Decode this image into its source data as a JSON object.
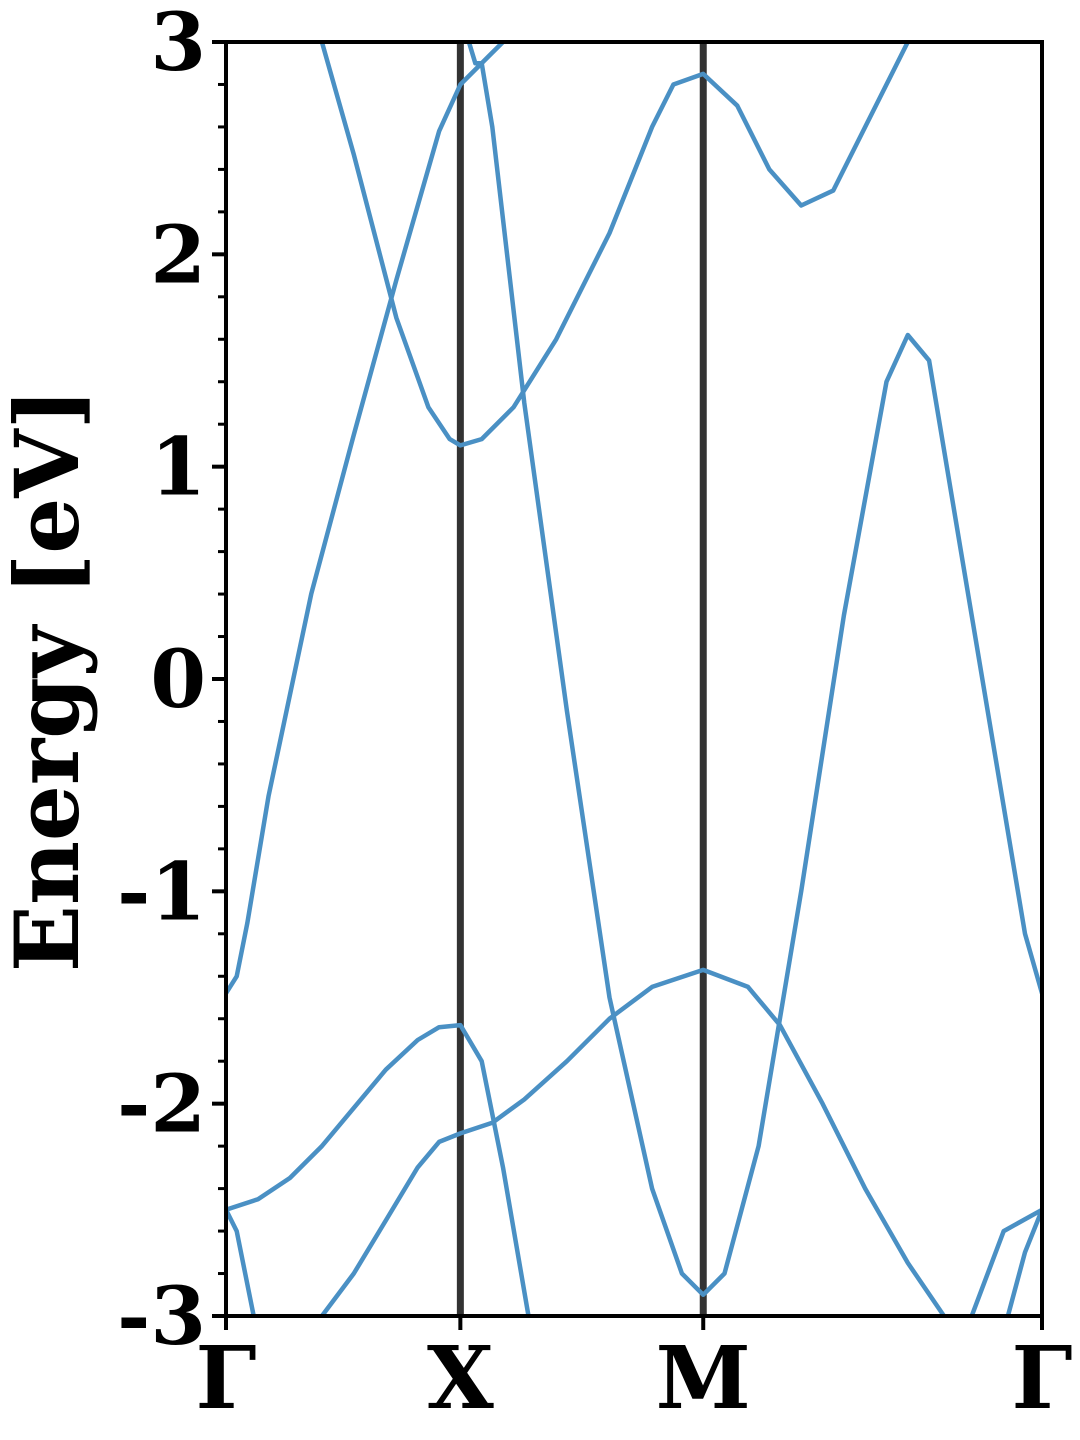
{
  "chart_data": {
    "type": "line",
    "ylabel": "Energy [eV]",
    "xlabel": "",
    "ylim": [
      -3,
      3
    ],
    "xlim": [
      0,
      3.83
    ],
    "y_ticks": [
      "-3",
      "-2",
      "-1",
      "0",
      "1",
      "2",
      "3"
    ],
    "y_tick_values": [
      -3,
      -2,
      -1,
      0,
      1,
      2,
      3
    ],
    "y_minor_step": 0.2,
    "x_ticks": [
      {
        "label": "Γ",
        "x": 0
      },
      {
        "label": "X",
        "x": 1.1
      },
      {
        "label": "M",
        "x": 2.24
      },
      {
        "label": "Γ",
        "x": 3.83
      }
    ],
    "high_symmetry_lines_at": [
      1.1,
      2.24
    ],
    "line_color": "#4a90c4",
    "vline_color": "#333333",
    "series": [
      {
        "values": [
          [
            0,
            -2.5
          ],
          [
            0.15,
            -2.45
          ],
          [
            0.3,
            -2.35
          ],
          [
            0.45,
            -2.2
          ],
          [
            0.6,
            -2.02
          ],
          [
            0.75,
            -1.84
          ],
          [
            0.9,
            -1.7
          ],
          [
            1.0,
            -1.64
          ],
          [
            1.1,
            -1.63
          ],
          [
            1.2,
            -1.8
          ],
          [
            1.3,
            -2.3
          ],
          [
            1.42,
            -3.0
          ]
        ]
      },
      {
        "values": [
          [
            0,
            -2.5
          ],
          [
            0.05,
            -2.6
          ],
          [
            0.13,
            -3.0
          ]
        ]
      },
      {
        "values": [
          [
            0.45,
            -3.0
          ],
          [
            0.6,
            -2.8
          ],
          [
            0.75,
            -2.55
          ],
          [
            0.9,
            -2.3
          ],
          [
            1.0,
            -2.18
          ],
          [
            1.1,
            -2.14
          ],
          [
            1.25,
            -2.09
          ],
          [
            1.4,
            -1.98
          ],
          [
            1.6,
            -1.8
          ],
          [
            1.8,
            -1.6
          ],
          [
            2.0,
            -1.45
          ],
          [
            2.24,
            -1.37
          ],
          [
            2.45,
            -1.45
          ],
          [
            2.6,
            -1.63
          ],
          [
            2.8,
            -2.0
          ],
          [
            3.0,
            -2.4
          ],
          [
            3.2,
            -2.75
          ],
          [
            3.37,
            -3.0
          ]
        ]
      },
      {
        "values": [
          [
            0,
            -1.48
          ],
          [
            0.05,
            -1.4
          ],
          [
            0.1,
            -1.15
          ],
          [
            0.2,
            -0.55
          ],
          [
            0.4,
            0.4
          ],
          [
            0.6,
            1.15
          ],
          [
            0.8,
            1.88
          ],
          [
            1.0,
            2.58
          ],
          [
            1.1,
            2.8
          ],
          [
            1.18,
            2.88
          ],
          [
            1.25,
            2.95
          ],
          [
            1.3,
            3.0
          ]
        ]
      },
      {
        "values": [
          [
            0.45,
            3.0
          ],
          [
            0.6,
            2.47
          ],
          [
            0.8,
            1.7
          ],
          [
            0.95,
            1.28
          ],
          [
            1.05,
            1.13
          ],
          [
            1.1,
            1.1
          ],
          [
            1.2,
            1.13
          ],
          [
            1.35,
            1.28
          ],
          [
            1.55,
            1.6
          ],
          [
            1.8,
            2.1
          ],
          [
            2.0,
            2.6
          ],
          [
            2.1,
            2.8
          ],
          [
            2.24,
            2.85
          ],
          [
            2.4,
            2.7
          ],
          [
            2.55,
            2.4
          ],
          [
            2.7,
            2.23
          ],
          [
            2.85,
            2.3
          ],
          [
            3.0,
            2.6
          ],
          [
            3.2,
            3.0
          ]
        ]
      },
      {
        "values": [
          [
            1.14,
            3.0
          ],
          [
            1.17,
            2.9
          ],
          [
            1.2,
            2.9
          ],
          [
            1.25,
            2.6
          ],
          [
            1.4,
            1.3
          ],
          [
            1.6,
            -0.15
          ],
          [
            1.8,
            -1.5
          ],
          [
            2.0,
            -2.4
          ],
          [
            2.14,
            -2.8
          ],
          [
            2.24,
            -2.9
          ],
          [
            2.34,
            -2.8
          ],
          [
            2.5,
            -2.2
          ],
          [
            2.7,
            -1.0
          ],
          [
            2.9,
            0.3
          ],
          [
            3.1,
            1.4
          ],
          [
            3.2,
            1.62
          ],
          [
            3.3,
            1.5
          ],
          [
            3.45,
            0.6
          ],
          [
            3.6,
            -0.3
          ],
          [
            3.75,
            -1.2
          ],
          [
            3.83,
            -1.48
          ]
        ]
      },
      {
        "values": [
          [
            3.83,
            -2.5
          ],
          [
            3.75,
            -2.7
          ],
          [
            3.67,
            -3.0
          ]
        ]
      },
      {
        "values": [
          [
            3.83,
            -2.5
          ],
          [
            3.65,
            -2.6
          ],
          [
            3.5,
            -3.0
          ]
        ]
      }
    ]
  }
}
